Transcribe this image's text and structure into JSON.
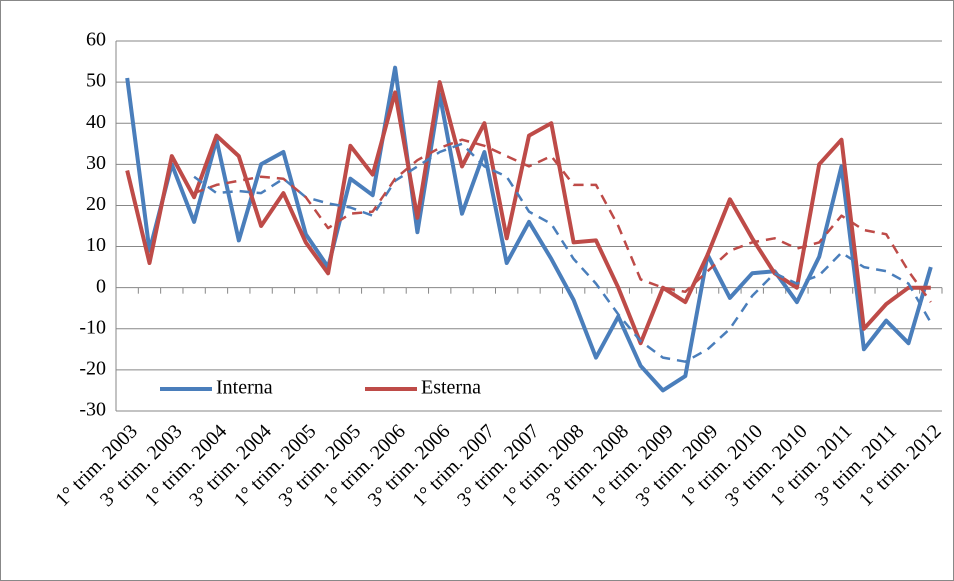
{
  "chart_data": {
    "type": "line",
    "categories": [
      "1° trim. 2003",
      null,
      "3° trim. 2003",
      null,
      "1° trim. 2004",
      null,
      "3° trim. 2004",
      null,
      "1° trim. 2005",
      null,
      "3° trim. 2005",
      null,
      "1° trim. 2006",
      null,
      "3° trim. 2006",
      null,
      "1° trim. 2007",
      null,
      "3° trim. 2007",
      null,
      "1° trim. 2008",
      null,
      "3° trim. 2008",
      null,
      "1° trim. 2009",
      null,
      "3° trim. 2009",
      null,
      "1° trim. 2010",
      null,
      "3° trim. 2010",
      null,
      "1° trim. 2011",
      null,
      "3° trim. 2011",
      null,
      "1° trim. 2012"
    ],
    "series": [
      {
        "name": "Interna",
        "color": "#4a7ebb",
        "values": [
          51,
          9,
          30,
          16,
          36,
          11.5,
          30,
          33,
          13,
          5,
          26.5,
          22.5,
          53.5,
          13.5,
          47,
          18,
          33,
          6,
          16,
          7,
          -3,
          -17,
          -7,
          -19,
          -25,
          -21.5,
          8,
          -2.5,
          3.5,
          4,
          -3.5,
          7.5,
          29.5,
          -15,
          -8,
          -13.5,
          5
        ]
      },
      {
        "name": "Esterna",
        "color": "#be4b48",
        "values": [
          28.5,
          6,
          32,
          22,
          37,
          32,
          15,
          23,
          11,
          3.5,
          34.5,
          27.5,
          47.5,
          17,
          50,
          29.5,
          40,
          12,
          37,
          40,
          11,
          11.5,
          0,
          -13.5,
          0,
          -3.5,
          8,
          21.5,
          12,
          3.5,
          0,
          30,
          36,
          -10,
          -4,
          0,
          0
        ]
      },
      {
        "color": "#4a7ebb",
        "dash": true,
        "values": [
          null,
          null,
          null,
          27,
          23,
          23.5,
          23,
          26.5,
          22,
          20.5,
          19.5,
          17.5,
          26,
          29.5,
          33,
          35,
          29.5,
          27,
          18.5,
          15.5,
          7,
          1,
          -6.5,
          -13,
          -17,
          -18,
          -15,
          -10,
          -2,
          3.5,
          1,
          3,
          8.5,
          5,
          4,
          1,
          -8.5
        ]
      },
      {
        "color": "#be4b48",
        "dash": true,
        "values": [
          null,
          null,
          null,
          23,
          25,
          26,
          27,
          26.5,
          22,
          14.5,
          18,
          18.5,
          26.5,
          31,
          34,
          36,
          34.5,
          32,
          29.5,
          32,
          25,
          25,
          15,
          2,
          0,
          -1,
          4,
          9,
          11,
          12,
          9.5,
          11,
          17.5,
          14,
          13,
          4,
          -3.5
        ]
      }
    ],
    "ylim": [
      -30,
      60
    ],
    "yticks": [
      -30,
      -20,
      -10,
      0,
      10,
      20,
      30,
      40,
      50,
      60
    ],
    "grid": true,
    "legend": "lower left"
  }
}
